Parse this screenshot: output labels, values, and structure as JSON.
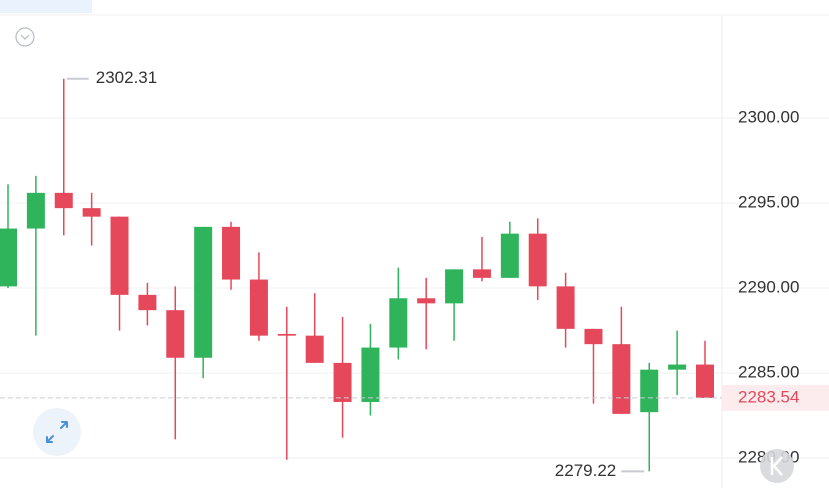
{
  "chart_data": {
    "type": "candlestick",
    "categories": [
      null,
      null,
      null,
      null,
      null,
      null,
      null,
      null,
      null,
      null,
      null,
      null,
      null,
      null,
      null,
      null,
      null,
      null,
      null,
      null,
      null,
      null,
      null,
      null,
      null,
      null
    ],
    "open": [
      2290.1,
      2293.5,
      2295.6,
      2294.7,
      2294.2,
      2289.6,
      2288.7,
      2285.9,
      2293.6,
      2290.5,
      2287.3,
      2287.2,
      2285.6,
      2283.3,
      2286.5,
      2289.4,
      2289.1,
      2291.1,
      2290.6,
      2293.2,
      2290.1,
      2287.6,
      2286.7,
      2282.7,
      2285.2,
      2285.5
    ],
    "high": [
      2296.1,
      2296.6,
      2302.31,
      2295.6,
      2294.2,
      2290.3,
      2290.1,
      2293.6,
      2293.9,
      2292.1,
      2288.9,
      2289.7,
      2288.3,
      2287.9,
      2291.2,
      2290.6,
      2291.1,
      2293.0,
      2293.9,
      2294.1,
      2290.9,
      2287.6,
      2288.9,
      2285.6,
      2287.5,
      2286.9
    ],
    "low": [
      2290.0,
      2287.2,
      2293.1,
      2292.5,
      2287.5,
      2287.8,
      2281.1,
      2284.7,
      2289.9,
      2286.9,
      2279.9,
      2285.6,
      2281.2,
      2282.5,
      2285.8,
      2286.4,
      2286.9,
      2290.4,
      2290.6,
      2289.3,
      2286.5,
      2283.2,
      2282.6,
      2279.22,
      2283.7,
      2283.54
    ],
    "close": [
      2293.5,
      2295.6,
      2294.7,
      2294.2,
      2289.6,
      2288.7,
      2285.9,
      2293.6,
      2290.5,
      2287.2,
      2287.2,
      2285.6,
      2283.3,
      2286.5,
      2289.4,
      2289.1,
      2291.1,
      2290.6,
      2293.2,
      2290.1,
      2287.6,
      2286.7,
      2282.6,
      2285.2,
      2285.5,
      2283.54
    ],
    "up_color": "#2fb45c",
    "down_color": "#e5485a",
    "ylim": [
      2278.24,
      2306.06
    ],
    "yticks": [
      {
        "value": 2280,
        "label": "2280.00"
      },
      {
        "value": 2285,
        "label": "2285.00"
      },
      {
        "value": 2290,
        "label": "2290.00"
      },
      {
        "value": 2295,
        "label": "2295.00"
      },
      {
        "value": 2300,
        "label": "2300.00"
      }
    ],
    "grid": true
  }
}
